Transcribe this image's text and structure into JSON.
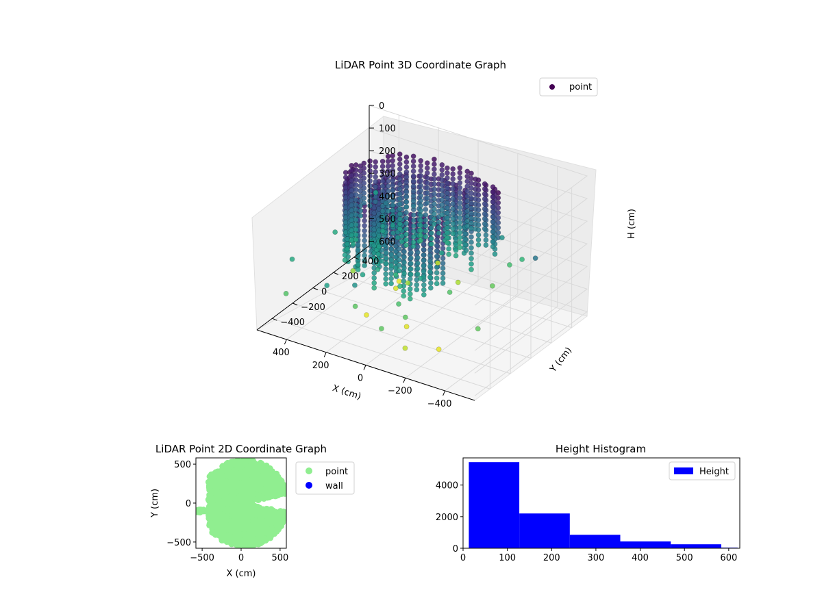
{
  "chart_data": [
    {
      "type": "scatter-3d",
      "title": "LiDAR Point 3D Coordinate Graph",
      "xlabel": "X (cm)",
      "ylabel": "Y (cm)",
      "zlabel": "H (cm)",
      "x_ticks": [
        -400,
        -200,
        0,
        200,
        400
      ],
      "y_ticks": [
        -400,
        -200,
        0,
        200,
        400
      ],
      "z_ticks": [
        0,
        100,
        200,
        300,
        400,
        500,
        600
      ],
      "xlim": [
        -550,
        550
      ],
      "ylim": [
        -550,
        550
      ],
      "zlim": [
        0,
        620
      ],
      "z_inverted": true,
      "colormap": "viridis",
      "legend": {
        "entries": [
          "point"
        ],
        "placement": "top-right"
      },
      "series": [
        {
          "name": "point",
          "color": "#440154",
          "description_shape": "ring-shaped structure of vertical point columns"
        }
      ],
      "grid": true
    },
    {
      "type": "scatter",
      "title": "LiDAR Point 2D Coordinate Graph",
      "xlabel": "X (cm)",
      "ylabel": "Y (cm)",
      "x_ticks": [
        -500,
        0,
        500
      ],
      "y_ticks": [
        -500,
        0,
        500
      ],
      "xlim": [
        -580,
        580
      ],
      "ylim": [
        -580,
        580
      ],
      "legend": {
        "entries": [
          "point",
          "wall"
        ],
        "placement": "outside-right"
      },
      "series": [
        {
          "name": "point",
          "color": "#90ee90"
        },
        {
          "name": "wall",
          "color": "#0000ff"
        }
      ],
      "grid": false
    },
    {
      "type": "bar",
      "title": "Height Histogram",
      "bins": [
        [
          13,
          127
        ],
        [
          127,
          241
        ],
        [
          241,
          355
        ],
        [
          355,
          469
        ],
        [
          469,
          583
        ],
        [
          583,
          620
        ]
      ],
      "values": [
        5450,
        2200,
        850,
        430,
        250,
        40
      ],
      "x_ticks": [
        0,
        100,
        200,
        300,
        400,
        500,
        600
      ],
      "y_ticks": [
        0,
        2000,
        4000
      ],
      "xlim": [
        0,
        625
      ],
      "ylim": [
        0,
        5720
      ],
      "legend": {
        "entries": [
          "Height"
        ],
        "placement": "top-right"
      },
      "series": [
        {
          "name": "Height",
          "color": "#0000ff"
        }
      ],
      "grid": false
    }
  ]
}
